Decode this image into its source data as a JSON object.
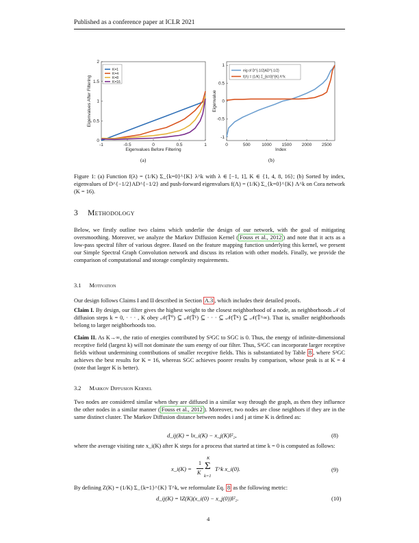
{
  "header": {
    "running_title": "Published as a conference paper at ICLR 2021"
  },
  "figure": {
    "panel_a_label": "(a)",
    "panel_b_label": "(b)",
    "caption": "Figure 1: (a) Function f(λ) = (1/K) Σ_{k=0}^{K} λ^k with λ ∈ [−1, 1], K ∈ {1, 4, 8, 16}; (b) Sorted by index, eigenvalues of D^{−1/2}AD^{−1/2} and push-forward eigenvalues f(Λ) = (1/K) Σ_{k=0}^{K} Λ^k on Cora network (K = 16)."
  },
  "chart_data": [
    {
      "type": "line",
      "title": "",
      "xlabel": "Eigenvalues Before Filtering",
      "ylabel": "Eigenvalues After Filtering",
      "xlim": [
        -1,
        1
      ],
      "ylim": [
        0,
        2
      ],
      "xticks": [
        "-1",
        "-0.5",
        "0",
        "0.5",
        "1"
      ],
      "yticks": [
        "0",
        "0.5",
        "1",
        "1.5",
        "2"
      ],
      "grid": false,
      "legend_position": "top-left",
      "colors": {
        "K=1": "#2f6fb6",
        "K=4": "#d9541e",
        "K=8": "#e6b33a",
        "K=16": "#7b2f8e"
      },
      "x": [
        -1,
        -0.75,
        -0.5,
        -0.25,
        0,
        0.25,
        0.5,
        0.6,
        0.7,
        0.8,
        0.9,
        0.95,
        1
      ],
      "series": [
        {
          "name": "K=1",
          "values": [
            0,
            0.125,
            0.25,
            0.375,
            0.5,
            0.625,
            0.75,
            0.8,
            0.85,
            0.9,
            0.95,
            0.975,
            1.0
          ]
        },
        {
          "name": "K=4",
          "values": [
            0.05,
            0.05,
            0.1,
            0.15,
            0.25,
            0.33,
            0.48,
            0.55,
            0.65,
            0.76,
            0.91,
            1.0,
            1.25
          ]
        },
        {
          "name": "K=8",
          "values": [
            0.06,
            0.05,
            0.07,
            0.1,
            0.125,
            0.17,
            0.25,
            0.31,
            0.39,
            0.52,
            0.72,
            0.88,
            1.12
          ]
        },
        {
          "name": "K=16",
          "values": [
            0.04,
            0.03,
            0.04,
            0.05,
            0.06,
            0.09,
            0.13,
            0.16,
            0.21,
            0.31,
            0.5,
            0.68,
            1.06
          ]
        }
      ]
    },
    {
      "type": "line",
      "title": "",
      "xlabel": "Index",
      "ylabel": "Eigenvalue",
      "xlim": [
        0,
        2700
      ],
      "ylim": [
        -1.1,
        1.1
      ],
      "xticks": [
        "0",
        "500",
        "1000",
        "1500",
        "2000",
        "2500"
      ],
      "yticks": [
        "-1",
        "-0.5",
        "0",
        "0.5",
        "1"
      ],
      "grid": false,
      "legend_position": "top",
      "colors": {
        "eig": "#6d9fd0",
        "push": "#d9541e"
      },
      "x": [
        0,
        50,
        200,
        400,
        600,
        800,
        1000,
        1200,
        1400,
        1600,
        1800,
        2000,
        2200,
        2400,
        2500,
        2600,
        2640,
        2700
      ],
      "series": [
        {
          "name": "eig of D^{-1/2}AD^{-1/2}",
          "values": [
            -1.0,
            -0.75,
            -0.58,
            -0.45,
            -0.35,
            -0.25,
            -0.17,
            -0.09,
            0.0,
            0.05,
            0.13,
            0.22,
            0.33,
            0.5,
            0.62,
            0.85,
            0.9,
            1.0
          ]
        },
        {
          "name": "f(Λ) = (1/K) Σ_{k=0}^{K} Λ^k",
          "values": [
            0.03,
            0.03,
            0.05,
            0.05,
            0.06,
            0.06,
            0.06,
            0.06,
            0.06,
            0.06,
            0.06,
            0.07,
            0.1,
            0.18,
            0.25,
            0.6,
            0.85,
            1.0
          ]
        }
      ]
    }
  ],
  "section3": {
    "number": "3",
    "title": "Methodology",
    "para1_a": "Below, we firstly outline two claims which underlie the design of our network, with the goal of mitigating oversmoothing. Moreover, we analyze the Markov Diffusion Kernel (",
    "para1_link": "Fouss et al., 2012",
    "para1_b": ") and note that it acts as a low-pass spectral filter of various degree. Based on the feature mapping function underlying this kernel, we present our Simple Spectral Graph Convolution network and discuss its relation with other models. Finally, we provide the comparison of computational and storage complexity requirements."
  },
  "sub31": {
    "number": "3.1",
    "title": "Motivation",
    "para_a": "Our design follows Claims I and II described in Section ",
    "para_link": "A.3",
    "para_b": ", which includes their detailed proofs.",
    "claim1_label": "Claim I.",
    "claim1_text": "By design, our filter gives the highest weight to the closest neighborhood of a node, as neighborhoods 𝒩 of diffusion steps k = 0, · · · , K obey 𝒩(T̃⁰) ⊆ 𝒩(T̃¹) ⊆ · · · ⊆ 𝒩(T̃ᴷ) ⊆ 𝒩(T̃^∞). That is, smaller neighborhoods belong to larger neighborhoods too.",
    "claim2_label": "Claim II.",
    "claim2_a": "As K→∞, the ratio of energies contributed by S²GC to SGC is 0. Thus, the energy of infinite-dimensional receptive field (largest k) will not dominate the sum energy of our filter. Thus, S²GC can incorporate larger receptive fields without undermining contributions of smaller receptive fields. This is substantiated by Table ",
    "claim2_link": "8",
    "claim2_b": ", where S²GC achieves the best results for K = 16, whereas SGC achieves poorer results by comparison, whose peak is at K = 4 (note that larger K is better)."
  },
  "sub32": {
    "number": "3.2",
    "title": "Markov Diffusion Kernel",
    "para1_a": "Two nodes are considered similar when they are diffused in a similar way through the graph, as then they influence the other nodes in a similar manner (",
    "para1_link": "Fouss et al., 2012",
    "para1_b": "). Moreover, two nodes are close neighbors if they are in the same distinct cluster. The Markov Diffusion distance between nodes i and j at time K is defined as:",
    "eq8": "d_ij(K) = ‖x_i(K) − x_j(K)‖²₂,",
    "eq8_num": "(8)",
    "para2": "where the average visiting rate x_i(K) after K steps for a process that started at time k = 0 is computed as follows:",
    "eq9_lhs": "x_i(K) =",
    "eq9_frac_num": "1",
    "eq9_frac_den": "K",
    "eq9_sum_top": "K",
    "eq9_sum_bot": "k=1",
    "eq9_rhs": "T^k x_i(0).",
    "eq9_num": "(9)",
    "para3_a": "By defining Z(K) = (1/K) Σ_{k=1}^{K} T^k, we reformulate Eq. ",
    "para3_link": "8",
    "para3_b": " as the following metric:",
    "eq10": "d_ij(K) = ‖Z(K)(x_i(0) − x_j(0))‖²₂.",
    "eq10_num": "(10)"
  },
  "footer": {
    "page": "4"
  }
}
